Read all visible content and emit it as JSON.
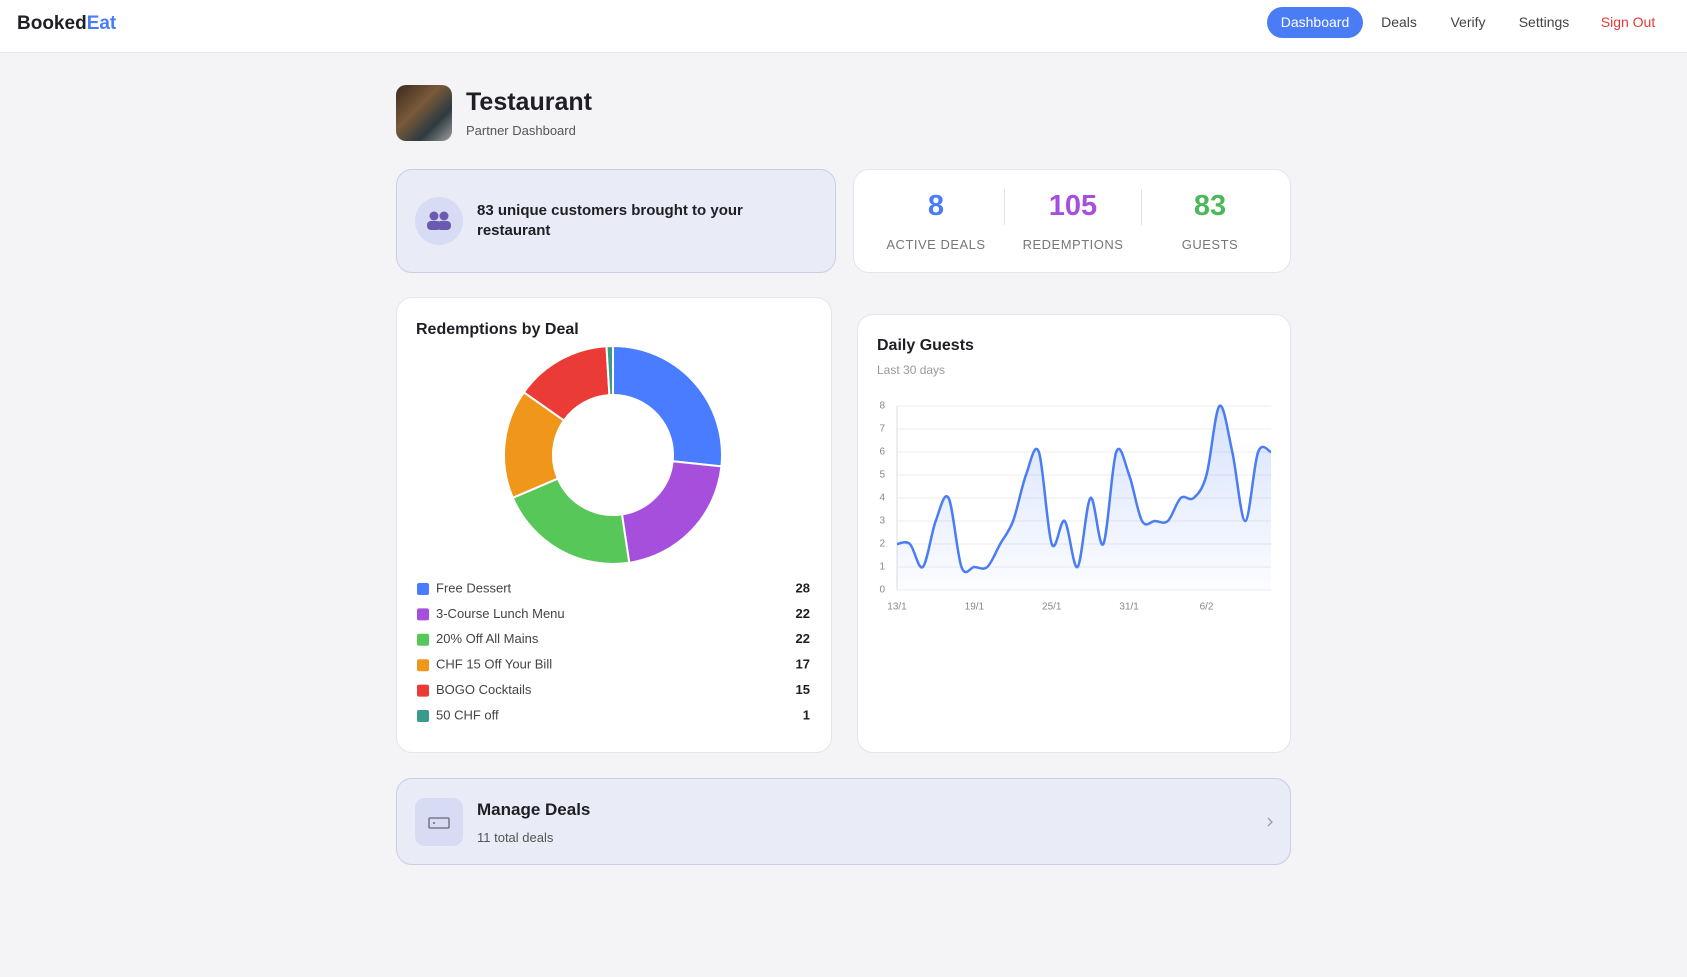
{
  "nav": {
    "brand": {
      "first": "Booked",
      "second": "Eat"
    },
    "links": [
      "Dashboard",
      "Deals",
      "Verify",
      "Settings",
      "Sign Out"
    ]
  },
  "header": {
    "title": "Testaurant",
    "subtitle": "Partner Dashboard"
  },
  "summary": "83 unique customers brought to your restaurant",
  "stats": [
    {
      "value": 8,
      "label": "ACTIVE DEALS",
      "color": "#4a7cf6"
    },
    {
      "value": 105,
      "label": "REDEMPTIONS",
      "color": "#a64fdd"
    },
    {
      "value": 83,
      "label": "GUESTS",
      "color": "#4cb85a"
    }
  ],
  "chart_data": [
    {
      "type": "pie",
      "title": "Redemptions by Deal",
      "categories": [
        "Free Dessert",
        "3-Course Lunch Menu",
        "20% Off All Mains",
        "CHF 15 Off Your Bill",
        "BOGO Cocktails",
        "50 CHF off"
      ],
      "values": [
        28,
        22,
        22,
        17,
        15,
        1
      ],
      "colors": [
        "#4a7cff",
        "#a64fdd",
        "#58c75a",
        "#f0961a",
        "#ea3b36",
        "#3a9b8a"
      ]
    },
    {
      "type": "line",
      "title": "Daily Guests",
      "subtitle": "Last 30 days",
      "categories": [
        "13/1",
        null,
        null,
        null,
        null,
        null,
        "19/1",
        null,
        null,
        null,
        null,
        null,
        "25/1",
        null,
        null,
        null,
        null,
        null,
        "31/1",
        null,
        null,
        null,
        null,
        null,
        "6/2",
        null,
        null,
        null,
        null,
        null
      ],
      "series": [
        {
          "name": "Guests",
          "color": "#4a7cf6",
          "values": [
            2,
            2,
            1,
            3,
            4,
            1,
            1,
            1,
            2,
            3,
            5,
            6,
            2,
            3,
            1,
            4,
            2,
            6,
            5,
            3,
            3,
            3,
            4,
            4,
            5,
            8,
            6,
            3,
            6,
            6
          ]
        }
      ],
      "ylim": [
        0,
        8
      ],
      "yticks": [
        0,
        1,
        2,
        3,
        4,
        5,
        6,
        7,
        8
      ],
      "grid": true
    }
  ],
  "manage": {
    "title": "Manage Deals",
    "subtitle": "11 total deals"
  }
}
